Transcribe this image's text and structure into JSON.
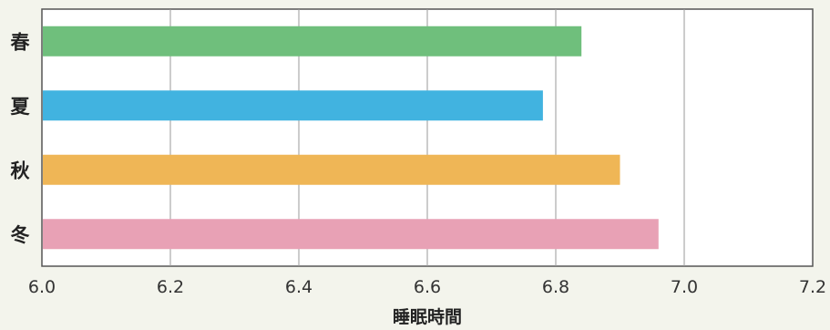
{
  "chart_data": {
    "type": "bar",
    "orientation": "horizontal",
    "categories": [
      "春",
      "夏",
      "秋",
      "冬"
    ],
    "values": [
      6.84,
      6.78,
      6.9,
      6.96
    ],
    "colors": [
      "#6fbf7c",
      "#41b3e0",
      "#efb656",
      "#e8a1b5"
    ],
    "xlabel": "睡眠時間",
    "xlim": [
      6.0,
      7.2
    ],
    "xticks": [
      "6.0",
      "6.2",
      "6.4",
      "6.6",
      "6.8",
      "7.0",
      "7.2"
    ],
    "grid": true
  }
}
